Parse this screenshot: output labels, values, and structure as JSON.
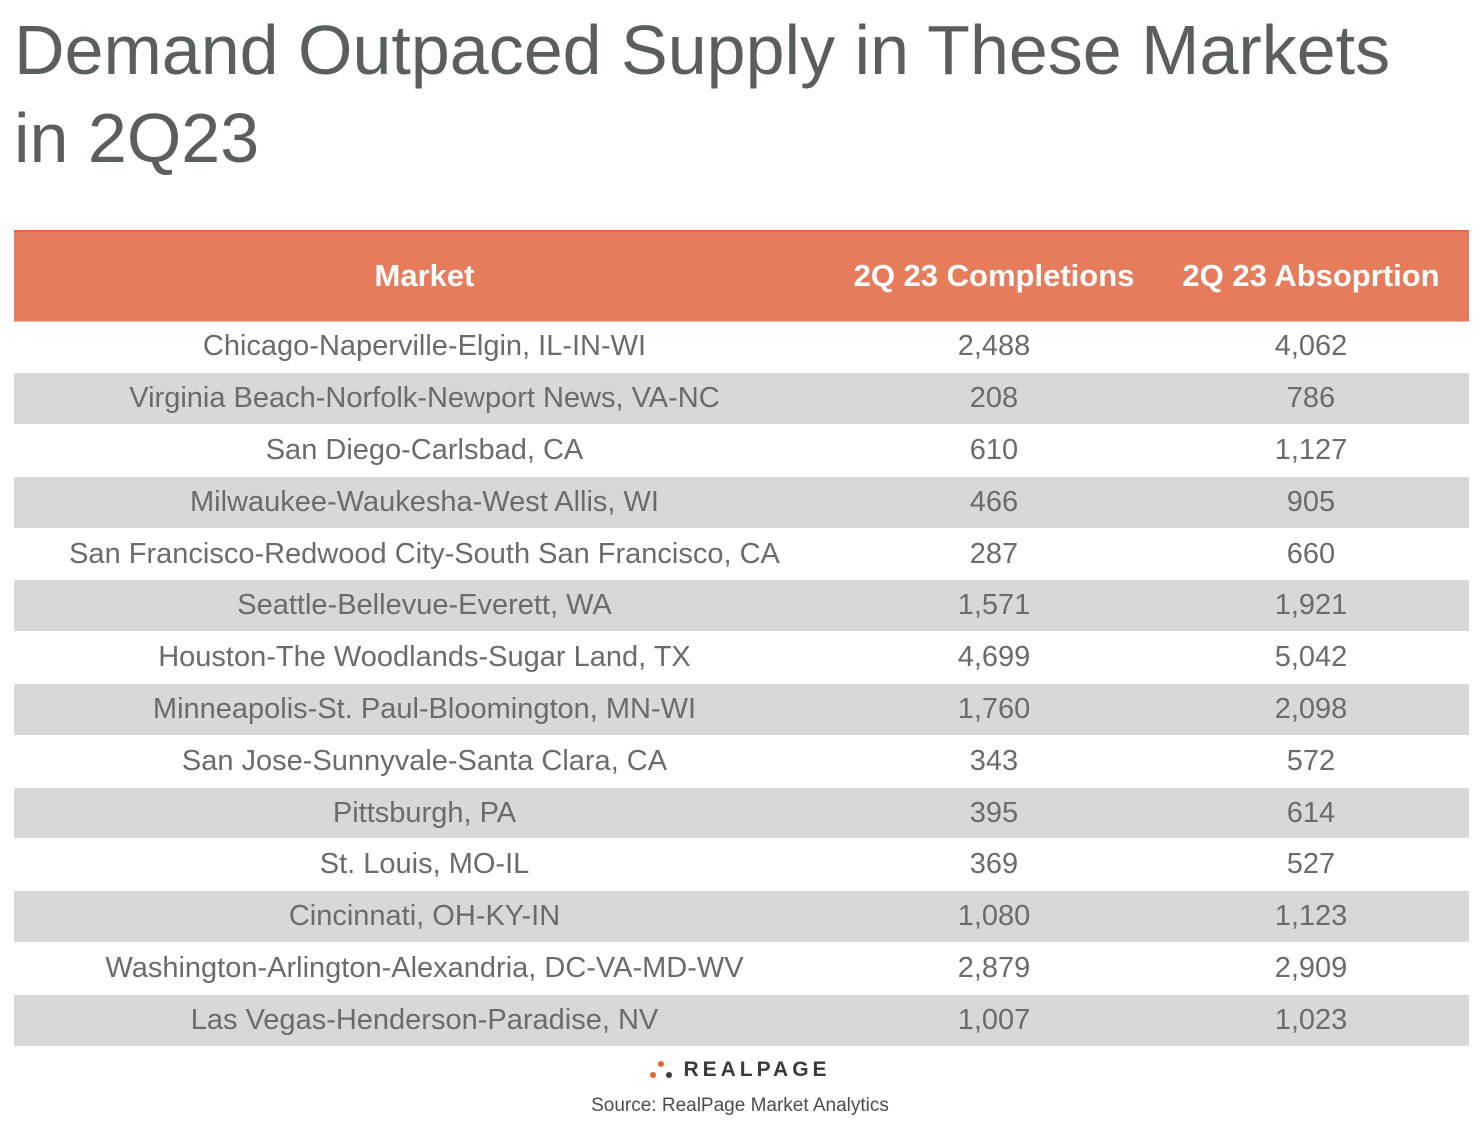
{
  "title": "Demand Outpaced Supply in These Markets in 2Q23",
  "colors": {
    "header_bg": "#e67c5c",
    "stripe": "#d8d8d8",
    "title": "#595f5d"
  },
  "chart_data": {
    "type": "table",
    "title": "Demand Outpaced Supply in These Markets in 2Q23",
    "columns": [
      "Market",
      "2Q 23 Completions",
      "2Q 23 Absoprtion"
    ],
    "rows": [
      {
        "market": "Chicago-Naperville-Elgin, IL-IN-WI",
        "completions": "2,488",
        "absorption": "4,062"
      },
      {
        "market": "Virginia Beach-Norfolk-Newport News, VA-NC",
        "completions": "208",
        "absorption": "786"
      },
      {
        "market": "San Diego-Carlsbad, CA",
        "completions": "610",
        "absorption": "1,127"
      },
      {
        "market": "Milwaukee-Waukesha-West Allis, WI",
        "completions": "466",
        "absorption": "905"
      },
      {
        "market": "San Francisco-Redwood City-South San Francisco, CA",
        "completions": "287",
        "absorption": "660"
      },
      {
        "market": "Seattle-Bellevue-Everett, WA",
        "completions": "1,571",
        "absorption": "1,921"
      },
      {
        "market": "Houston-The Woodlands-Sugar Land, TX",
        "completions": "4,699",
        "absorption": "5,042"
      },
      {
        "market": "Minneapolis-St. Paul-Bloomington, MN-WI",
        "completions": "1,760",
        "absorption": "2,098"
      },
      {
        "market": "San Jose-Sunnyvale-Santa Clara, CA",
        "completions": "343",
        "absorption": "572"
      },
      {
        "market": "Pittsburgh, PA",
        "completions": "395",
        "absorption": "614"
      },
      {
        "market": "St. Louis, MO-IL",
        "completions": "369",
        "absorption": "527"
      },
      {
        "market": "Cincinnati, OH-KY-IN",
        "completions": "1,080",
        "absorption": "1,123"
      },
      {
        "market": "Washington-Arlington-Alexandria, DC-VA-MD-WV",
        "completions": "2,879",
        "absorption": "2,909"
      },
      {
        "market": "Las Vegas-Henderson-Paradise, NV",
        "completions": "1,007",
        "absorption": "1,023"
      }
    ]
  },
  "footer": {
    "logo_text": "REALPAGE",
    "logo_icon": "realpage-dots-icon",
    "source": "Source: RealPage Market Analytics"
  }
}
